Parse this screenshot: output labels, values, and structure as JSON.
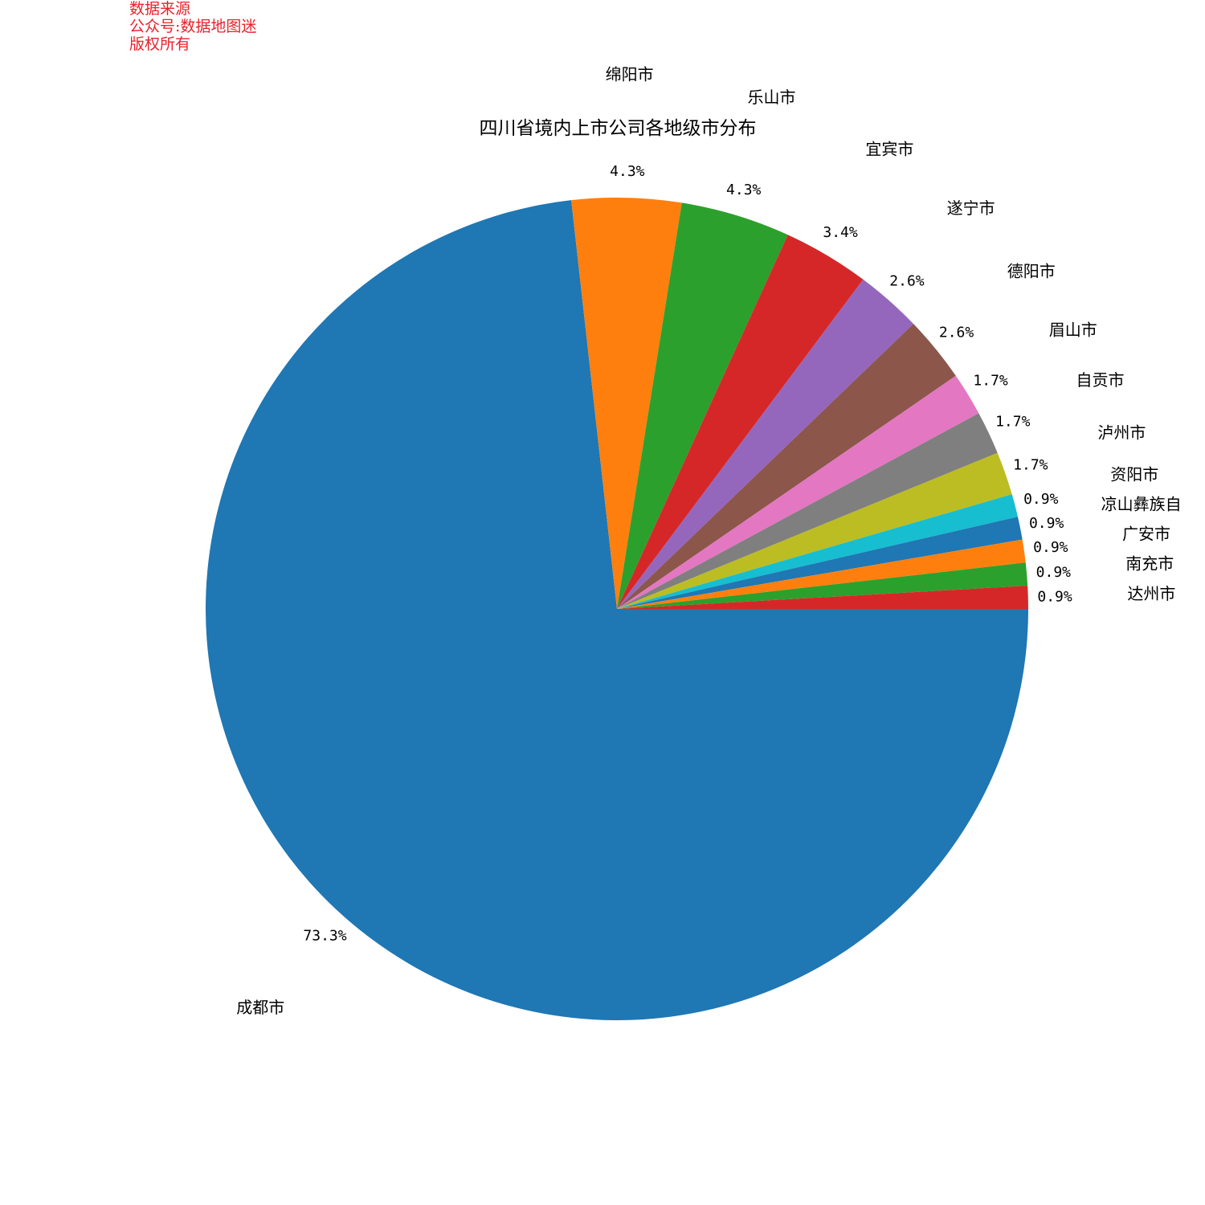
{
  "watermark": {
    "line1": "数据来源",
    "line2": "公众号:数据地图迷",
    "line3": "版权所有",
    "color": "#e8222b"
  },
  "chart_data": {
    "type": "pie",
    "title": "四川省境内上市公司各地级市分布",
    "categories": [
      "成都市",
      "绵阳市",
      "乐山市",
      "宜宾市",
      "遂宁市",
      "德阳市",
      "眉山市",
      "自贡市",
      "泸州市",
      "资阳市",
      "凉山彝族自",
      "广安市",
      "南充市",
      "达州市"
    ],
    "values": [
      73.3,
      4.3,
      4.3,
      3.4,
      2.6,
      2.6,
      1.7,
      1.7,
      1.7,
      0.9,
      0.9,
      0.9,
      0.9,
      0.9
    ],
    "percent_labels": [
      "73.3%",
      "4.3%",
      "4.3%",
      "3.4%",
      "2.6%",
      "2.6%",
      "1.7%",
      "1.7%",
      "1.7%",
      "0.9%",
      "0.9%",
      "0.9%",
      "0.9%",
      "0.9%"
    ],
    "colors": [
      "#1f77b4",
      "#ff7f0e",
      "#2ca02c",
      "#d62728",
      "#9467bd",
      "#8c564b",
      "#e377c2",
      "#7f7f7f",
      "#bcbd22",
      "#17becf",
      "#1f77b4",
      "#ff7f0e",
      "#2ca02c",
      "#d62728"
    ],
    "start_angle_deg": 0,
    "direction": "clockwise"
  }
}
